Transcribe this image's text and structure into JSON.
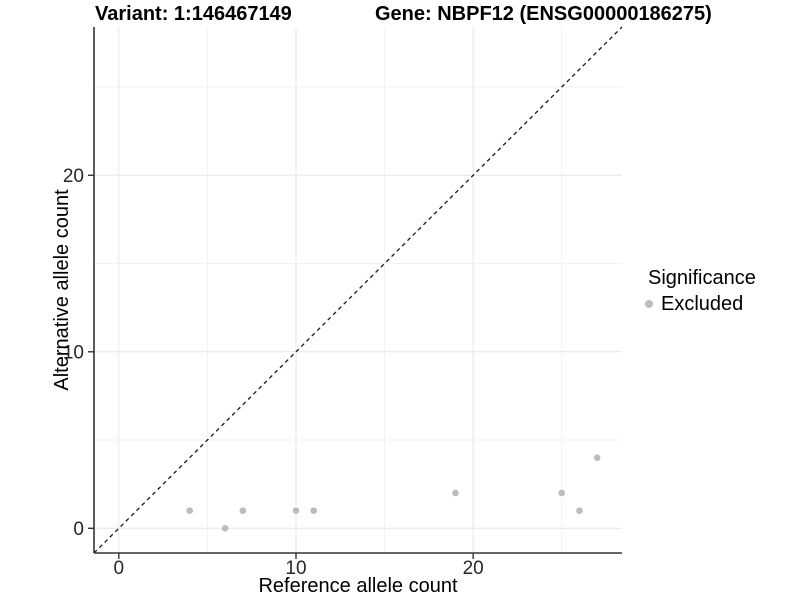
{
  "titles": {
    "variant": "Variant: 1:146467149",
    "gene": "Gene: NBPF12 (ENSG00000186275)"
  },
  "legend": {
    "title": "Significance",
    "items": [
      {
        "label": "Excluded",
        "color": "#bcbcbc"
      }
    ]
  },
  "colors": {
    "background": "#ffffff",
    "text": "#000000",
    "axis_line": "#333333",
    "tick_mark": "#333333",
    "tick_label": "#262626",
    "grid_major": "#e6e6e6",
    "grid_minor": "#f2f2f2",
    "reference_line": "#1a1a1a",
    "points": "#bcbcbc"
  },
  "chart_data": {
    "type": "scatter",
    "title_left": "Variant: 1:146467149",
    "title_right": "Gene: NBPF12 (ENSG00000186275)",
    "xlabel": "Reference allele count",
    "ylabel": "Alternative allele count",
    "xlim": [
      -1.4,
      28.4
    ],
    "ylim": [
      -1.4,
      28.4
    ],
    "x_ticks": [
      0,
      10,
      20
    ],
    "y_ticks": [
      0,
      10,
      20
    ],
    "x_minor_ticks": [
      5,
      15,
      25
    ],
    "y_minor_ticks": [
      5,
      15,
      25
    ],
    "grid": true,
    "legend_position": "right",
    "series": [
      {
        "name": "Excluded",
        "color": "#bcbcbc",
        "points": [
          [
            4,
            1
          ],
          [
            6,
            0
          ],
          [
            7,
            1
          ],
          [
            10,
            1
          ],
          [
            11,
            1
          ],
          [
            19,
            2
          ],
          [
            25,
            2
          ],
          [
            26,
            1
          ],
          [
            27,
            4
          ]
        ]
      }
    ],
    "reference_line": {
      "kind": "identity y=x",
      "style": "dashed",
      "color": "#1a1a1a"
    }
  }
}
